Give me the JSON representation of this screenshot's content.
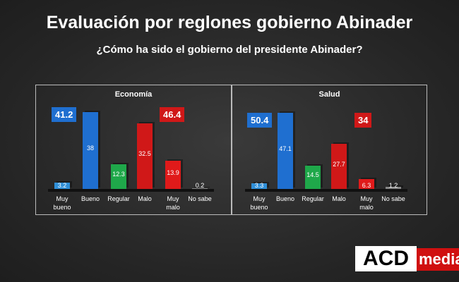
{
  "header": {
    "title": "Evaluación por reglones gobierno Abinader",
    "subtitle": "¿Cómo ha sido el gobierno del presidente Abinader?"
  },
  "chart_data": [
    {
      "type": "bar",
      "title": "Economía",
      "categories": [
        "Muy bueno",
        "Bueno",
        "Regular",
        "Malo",
        "Muy malo",
        "No sabe"
      ],
      "values": [
        3.2,
        38,
        12.3,
        32.5,
        13.9,
        0.2
      ],
      "colors": [
        "#2f8fd8",
        "#1f6fd0",
        "#1fa84a",
        "#d01818",
        "#e01a1a",
        "#888888"
      ],
      "ylim": [
        0,
        40
      ],
      "annotations": [
        {
          "value": 41.2,
          "color": "#1f6fd0"
        },
        {
          "value": 46.4,
          "color": "#d01818"
        }
      ]
    },
    {
      "type": "bar",
      "title": "Salud",
      "categories": [
        "Muy bueno",
        "Bueno",
        "Regular",
        "Malo",
        "Muy malo",
        "No sabe"
      ],
      "values": [
        3.3,
        47.1,
        14.5,
        27.7,
        6.3,
        1.2
      ],
      "colors": [
        "#2f8fd8",
        "#1f6fd0",
        "#1fa84a",
        "#d01818",
        "#e01a1a",
        "#888888"
      ],
      "ylim": [
        0,
        50
      ],
      "annotations": [
        {
          "value": 50.4,
          "color": "#1f6fd0"
        },
        {
          "value": 34,
          "color": "#d01818"
        }
      ]
    }
  ],
  "logo": {
    "left": "ACD",
    "right": "media"
  }
}
